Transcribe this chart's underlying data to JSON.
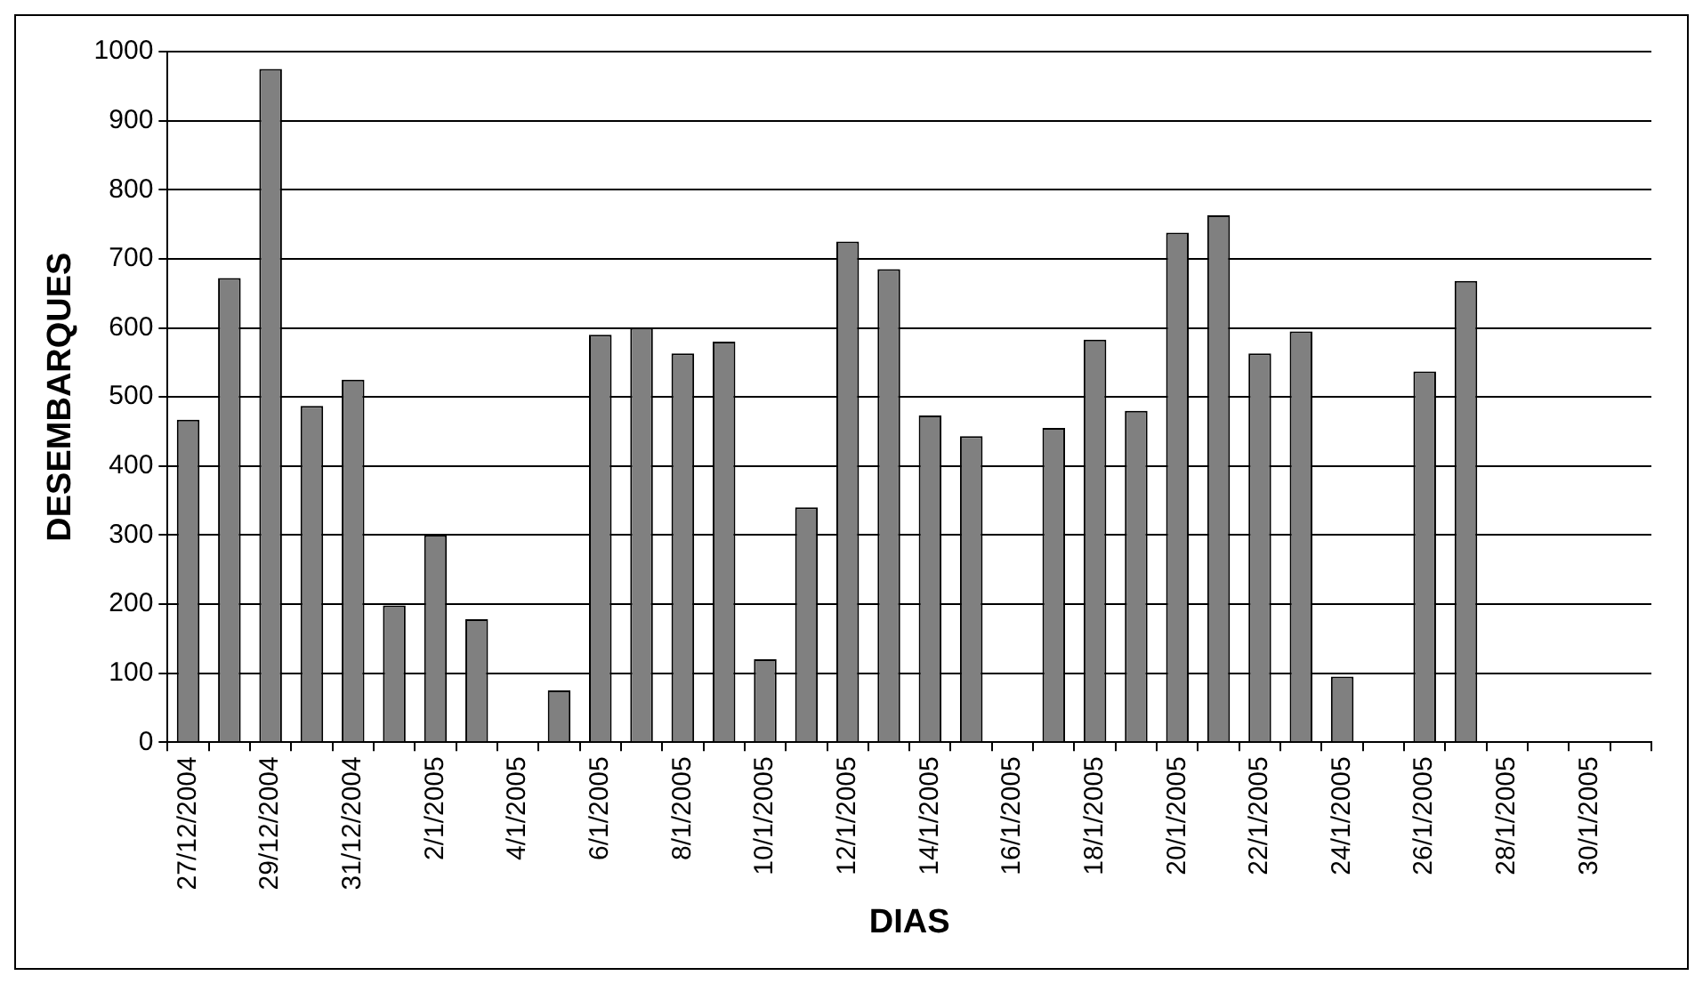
{
  "chart_data": {
    "type": "bar",
    "xlabel": "DIAS",
    "ylabel": "DESEMBARQUES",
    "categories": [
      "27/12/2004",
      null,
      "29/12/2004",
      null,
      "31/12/2004",
      null,
      "2/1/2005",
      null,
      "4/1/2005",
      null,
      "6/1/2005",
      null,
      "8/1/2005",
      null,
      "10/1/2005",
      null,
      "12/1/2005",
      null,
      "14/1/2005",
      null,
      "16/1/2005",
      null,
      "18/1/2005",
      null,
      "20/1/2005",
      null,
      "22/1/2005",
      null,
      "24/1/2005",
      null,
      "26/1/2005",
      null,
      "28/1/2005",
      null,
      "30/1/2005",
      null
    ],
    "values": [
      467,
      672,
      975,
      487,
      525,
      198,
      300,
      178,
      null,
      75,
      590,
      600,
      563,
      580,
      120,
      340,
      725,
      685,
      473,
      443,
      null,
      455,
      583,
      480,
      738,
      763,
      563,
      595,
      95,
      null,
      537,
      668,
      null,
      null,
      null,
      null
    ],
    "color": "#808080",
    "ylim": [
      0,
      1000
    ],
    "yticks": [
      0,
      100,
      200,
      300,
      400,
      500,
      600,
      700,
      800,
      900,
      1000
    ],
    "grid": "y",
    "legend": false
  }
}
